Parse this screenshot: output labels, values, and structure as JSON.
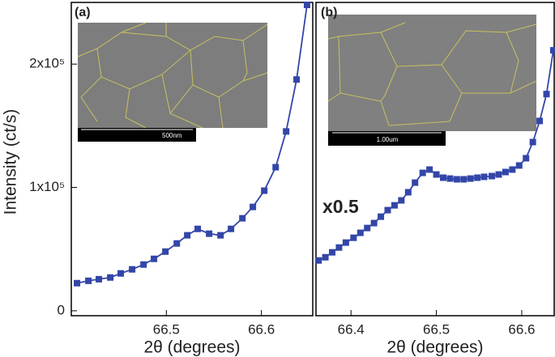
{
  "chart_data": [
    {
      "type": "line",
      "panel_label": "(a)",
      "inset_scale": "500nm",
      "y_label": "Intensity (ct/s)",
      "x_label": "2θ (degrees)",
      "color": "#3346a8",
      "xlim": [
        66.4,
        66.654
      ],
      "ylim": [
        -4000,
        250000
      ],
      "xticks": [
        66.5,
        66.6
      ],
      "yticks": [
        0,
        {
          "value": 100000,
          "label": "1x10⁵"
        },
        {
          "value": 200000,
          "label": "2x10⁵"
        }
      ],
      "x": [
        66.406,
        66.418,
        66.429,
        66.441,
        66.452,
        66.464,
        66.476,
        66.487,
        66.499,
        66.511,
        66.522,
        66.533,
        66.545,
        66.557,
        66.568,
        66.58,
        66.591,
        66.603,
        66.615,
        66.626,
        66.637,
        66.648
      ],
      "values": [
        22400,
        24300,
        25600,
        27000,
        30300,
        33600,
        37500,
        42100,
        48000,
        54600,
        61200,
        66400,
        62500,
        61200,
        66400,
        75000,
        84200,
        97400,
        116400,
        145400,
        187500,
        248000
      ]
    },
    {
      "type": "line",
      "panel_label": "(b)",
      "inset_scale": "1.00um",
      "annotation": "x0.5",
      "x_label": "2θ (degrees)",
      "color": "#3346a8",
      "xlim": [
        66.359,
        66.638
      ],
      "ylim": [
        -4000,
        250000
      ],
      "xticks": [
        66.4,
        66.5,
        66.6
      ],
      "x": [
        66.362,
        66.37,
        66.378,
        66.386,
        66.394,
        66.403,
        66.411,
        66.419,
        66.427,
        66.435,
        66.443,
        66.451,
        66.459,
        66.467,
        66.475,
        66.484,
        66.492,
        66.5,
        66.508,
        66.516,
        66.524,
        66.532,
        66.54,
        66.548,
        66.556,
        66.565,
        66.573,
        66.581,
        66.589,
        66.597,
        66.605,
        66.613,
        66.621,
        66.629,
        66.637
      ],
      "values": [
        40800,
        43400,
        47400,
        51300,
        55300,
        59200,
        63200,
        67100,
        71100,
        76300,
        81600,
        85500,
        89500,
        96100,
        103900,
        111800,
        114500,
        110500,
        107900,
        107200,
        106600,
        106600,
        107200,
        107900,
        108600,
        109200,
        110500,
        112500,
        114500,
        117800,
        123700,
        136800,
        153900,
        175700,
        211200
      ]
    }
  ]
}
